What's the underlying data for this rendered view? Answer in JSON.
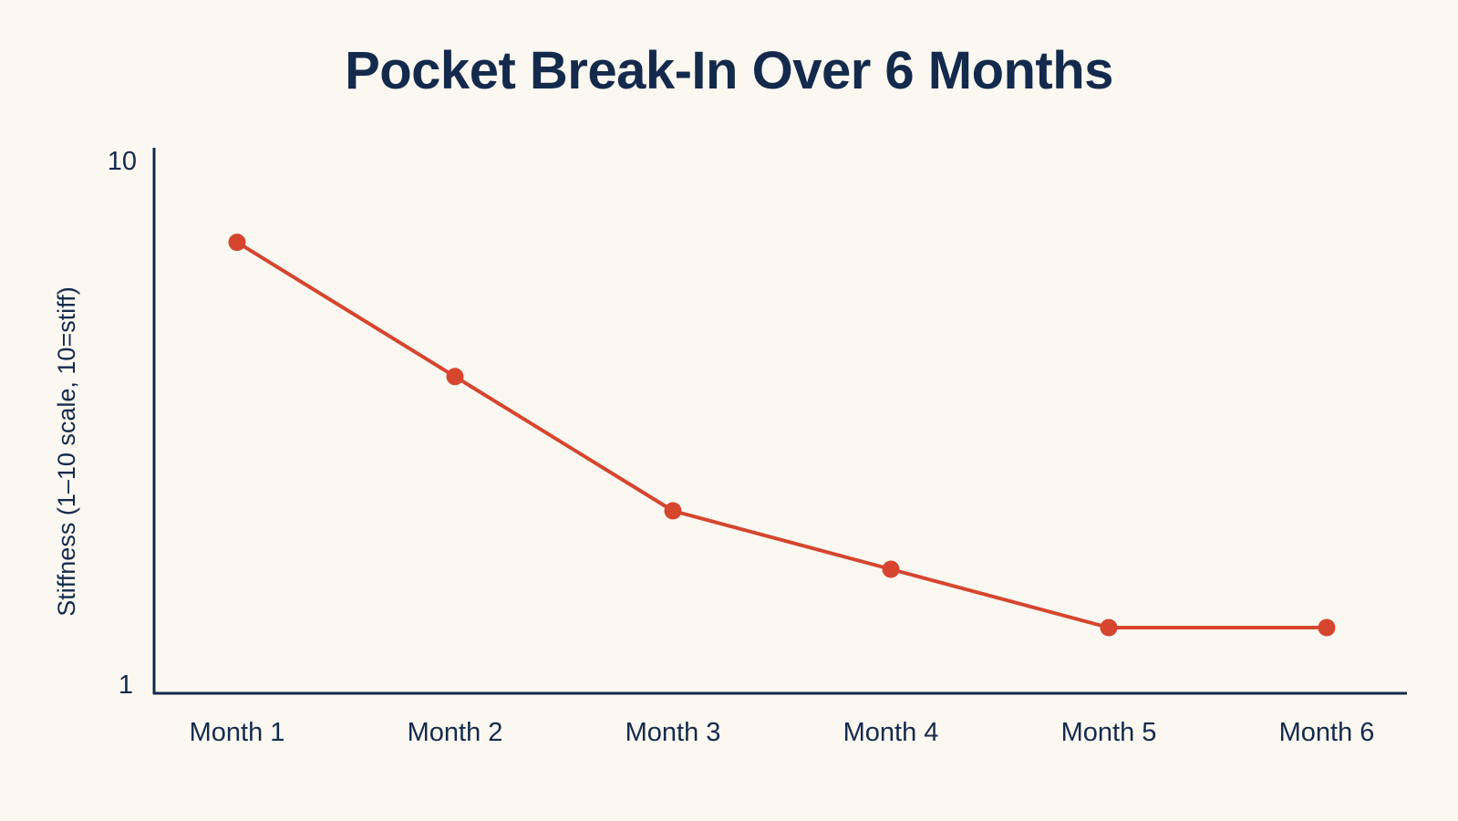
{
  "chart_data": {
    "type": "line",
    "title": "Pocket Break-In Over 6 Months",
    "xlabel": "",
    "ylabel": "Stiffness (1–10 scale, 10=stiff)",
    "categories": [
      "Month 1",
      "Month 2",
      "Month 3",
      "Month 4",
      "Month 5",
      "Month 6"
    ],
    "values": [
      8.6,
      6.3,
      4.0,
      3.0,
      2.0,
      2.0
    ],
    "ylim": [
      1,
      10
    ],
    "y_ticks": [
      "1",
      "10"
    ],
    "grid": false,
    "legend": "none",
    "colors": {
      "line": "#d6452f",
      "axis": "#142a4d",
      "text": "#142a4d",
      "background": "#fbf8f1"
    }
  }
}
